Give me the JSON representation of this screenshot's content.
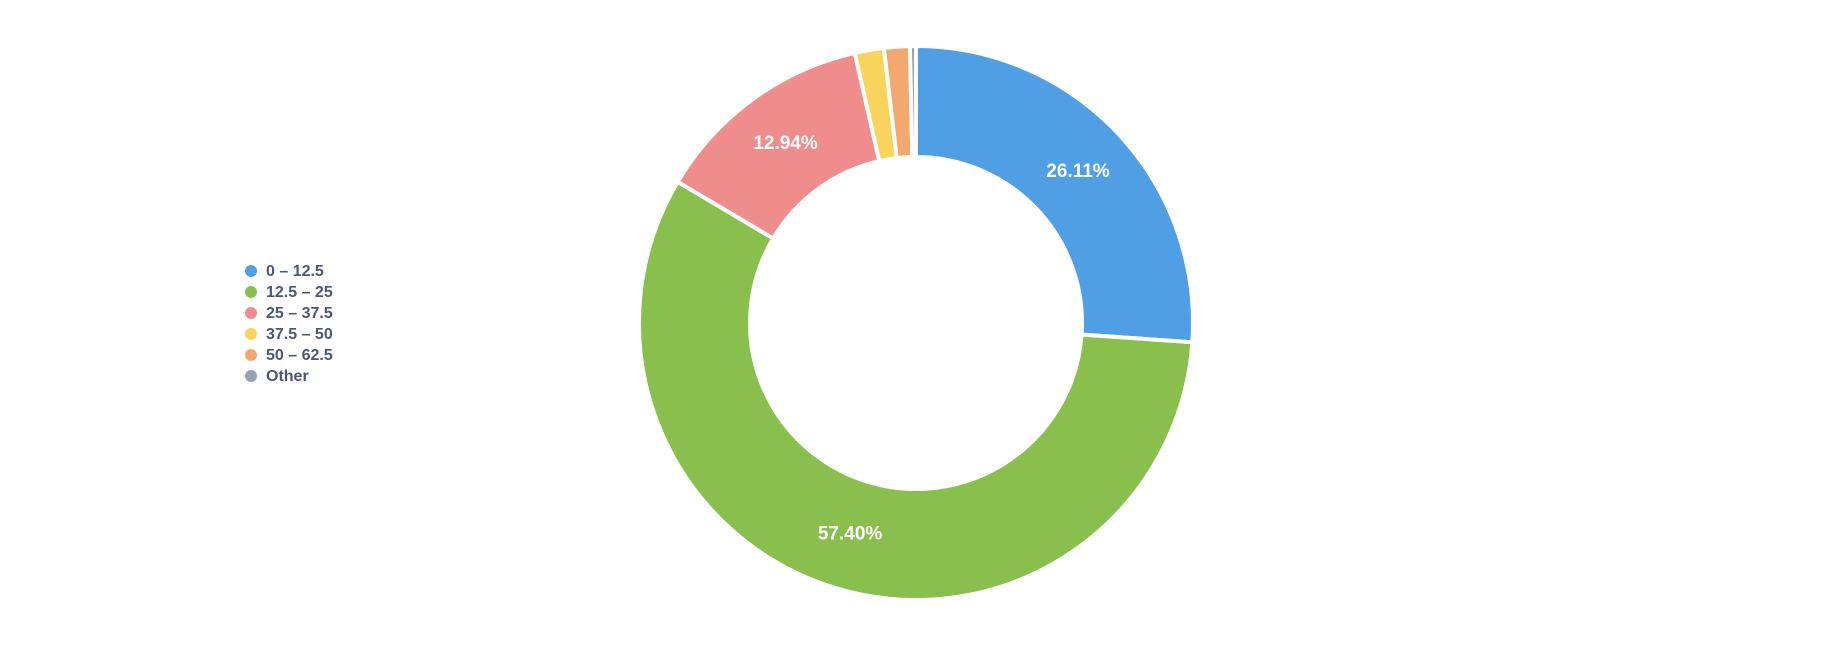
{
  "chart_data": {
    "type": "pie",
    "donut": true,
    "categories": [
      "0 – 12.5",
      "12.5 – 25",
      "25 – 37.5",
      "37.5 – 50",
      "50 – 62.5",
      "Other"
    ],
    "values": [
      26.11,
      57.4,
      12.94,
      1.7,
      1.5,
      0.35
    ],
    "value_labels": [
      "26.11%",
      "57.40%",
      "12.94%",
      null,
      null,
      null
    ],
    "colors": [
      "#509ee3",
      "#88bf4d",
      "#ef8c8c",
      "#f9d45c",
      "#f2a86f",
      "#98a0b3"
    ],
    "legend": "left"
  }
}
